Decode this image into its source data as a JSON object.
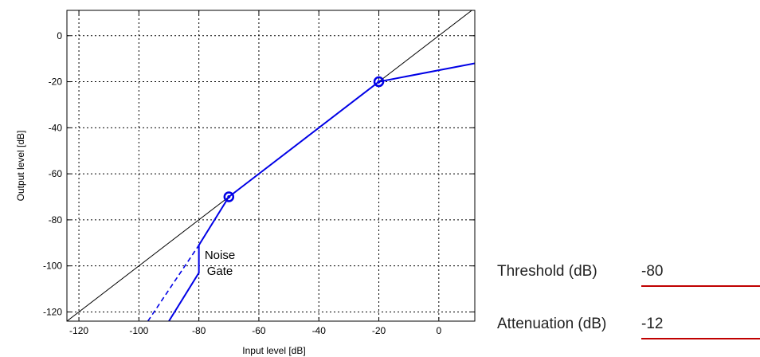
{
  "chart_data": {
    "type": "line",
    "xlabel": "Input level [dB]",
    "ylabel": "Output level [dB]",
    "xlim": [
      -124,
      12
    ],
    "ylim": [
      -124,
      11
    ],
    "xticks": [
      -120,
      -100,
      -80,
      -60,
      -40,
      -20,
      0
    ],
    "yticks": [
      0,
      -20,
      -40,
      -60,
      -80,
      -100,
      -120
    ],
    "grid": "dashed",
    "series": [
      {
        "style": "thin-black",
        "x": [
          -124,
          12
        ],
        "y": [
          -124,
          12
        ]
      },
      {
        "style": "solid-blue",
        "x": [
          -90,
          -80,
          -80,
          -70,
          -20,
          12
        ],
        "y": [
          -124,
          -103,
          -91,
          -70,
          -20,
          -12
        ]
      },
      {
        "style": "dashed-blue",
        "x": [
          -97,
          -80
        ],
        "y": [
          -124,
          -91
        ]
      }
    ],
    "markers": [
      {
        "x": -70,
        "y": -70
      },
      {
        "x": -20,
        "y": -20
      }
    ],
    "annotation": {
      "lines": [
        "Noise",
        "Gate"
      ],
      "x": -73,
      "y": -97
    }
  },
  "params": [
    {
      "label": "Threshold (dB)",
      "value": "-80"
    },
    {
      "label": "Attenuation (dB)",
      "value": "-12"
    }
  ],
  "colors": {
    "curve": "#0000e6",
    "underline": "#c00000",
    "grid": "#000000"
  }
}
